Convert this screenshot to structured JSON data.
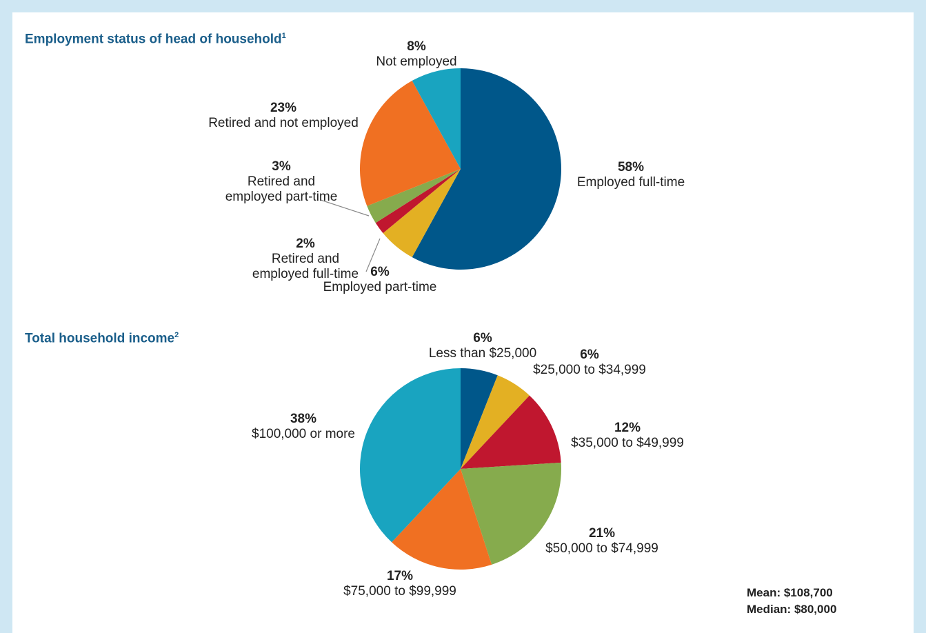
{
  "chart_data": [
    {
      "type": "pie",
      "title": "Employment status of head of household",
      "footnote": "1",
      "categories": [
        "Employed full-time",
        "Employed part-time",
        "Retired and employed full-time",
        "Retired and employed part-time",
        "Retired and not employed",
        "Not employed"
      ],
      "values": [
        58,
        6,
        2,
        3,
        23,
        8
      ],
      "value_labels": [
        "58%",
        "6%",
        "2%",
        "3%",
        "23%",
        "8%"
      ],
      "colors": [
        "#00578a",
        "#e3b023",
        "#c0172f",
        "#86ab4d",
        "#f07022",
        "#19a4c0"
      ]
    },
    {
      "type": "pie",
      "title": "Total household income",
      "footnote": "2",
      "categories": [
        "Less than $25,000",
        "$25,000 to $34,999",
        "$35,000 to $49,999",
        "$50,000 to $74,999",
        "$75,000 to $99,999",
        "$100,000 or more"
      ],
      "values": [
        6,
        6,
        12,
        21,
        17,
        38
      ],
      "value_labels": [
        "6%",
        "6%",
        "12%",
        "21%",
        "17%",
        "38%"
      ],
      "colors": [
        "#00578a",
        "#e3b023",
        "#c0172f",
        "#86ab4d",
        "#f07022",
        "#19a4c0"
      ],
      "annotations": [
        "Mean: $108,700",
        "Median: $80,000"
      ]
    }
  ]
}
